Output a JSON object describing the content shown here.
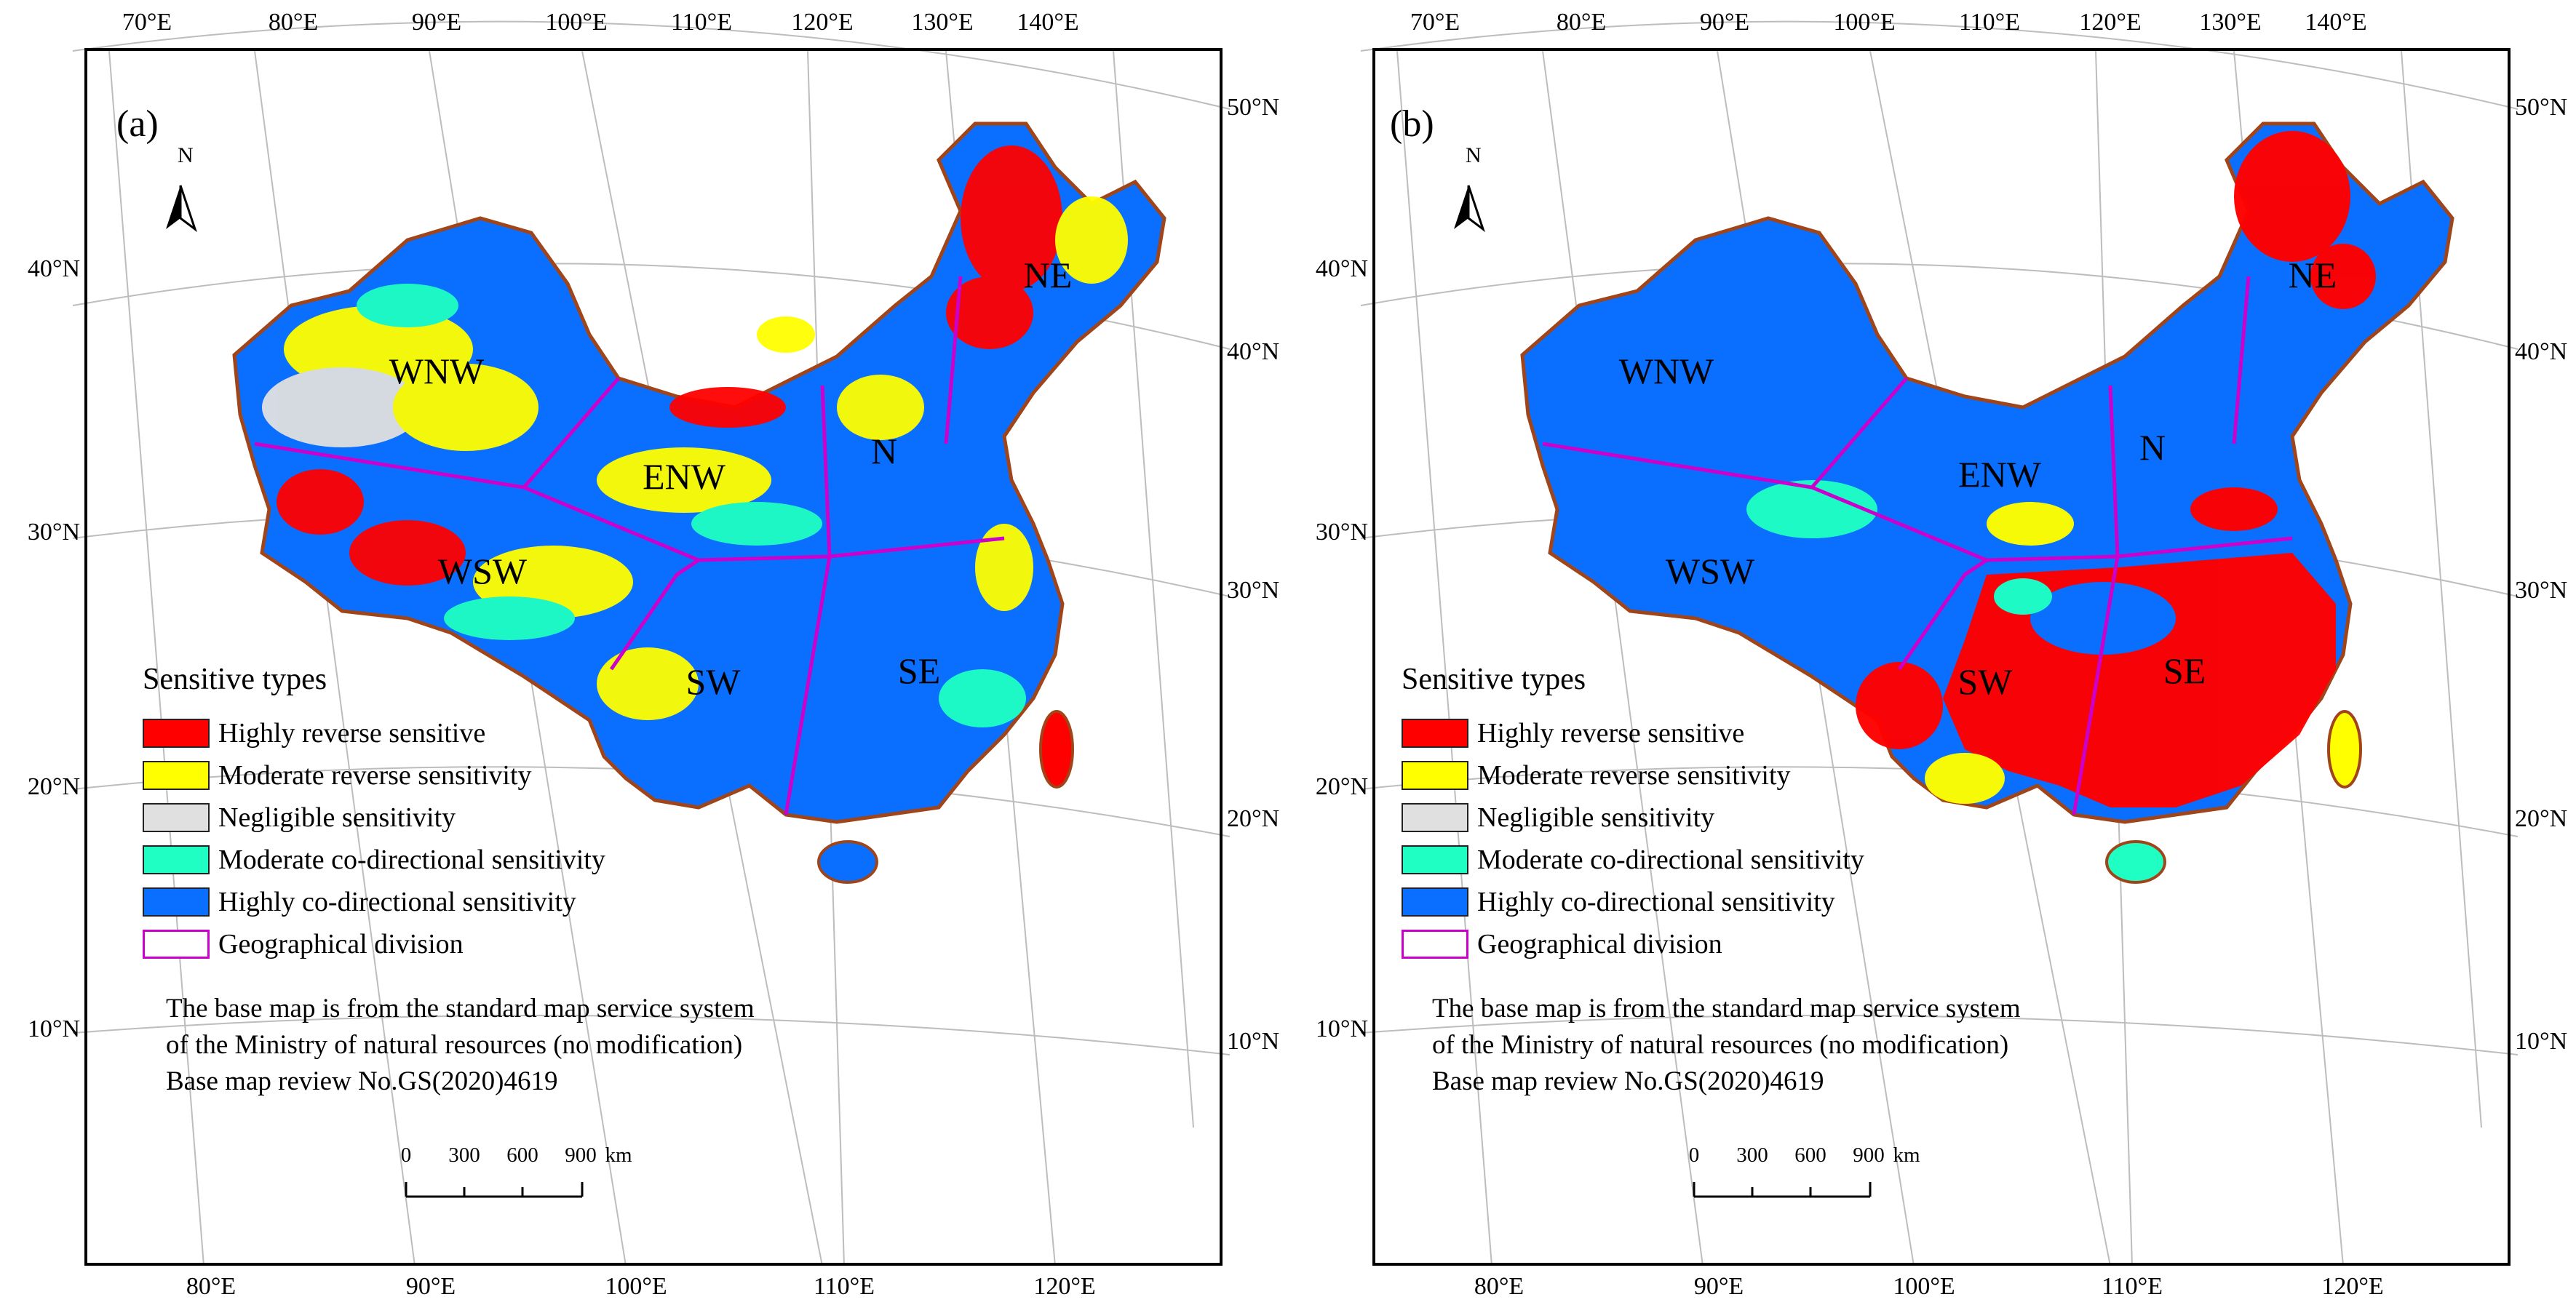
{
  "figure": {
    "panels": [
      {
        "label": "(a)",
        "regions": [
          "WNW",
          "ENW",
          "N",
          "NE",
          "WSW",
          "SW",
          "SE"
        ]
      },
      {
        "label": "(b)",
        "regions": [
          "WNW",
          "ENW",
          "N",
          "NE",
          "WSW",
          "SW",
          "SE"
        ]
      }
    ],
    "north_arrow": "N",
    "axes": {
      "top_longitudes": [
        "70°E",
        "80°E",
        "90°E",
        "100°E",
        "110°E",
        "120°E",
        "130°E",
        "140°E"
      ],
      "bottom_longitudes": [
        "80°E",
        "90°E",
        "100°E",
        "110°E",
        "120°E"
      ],
      "left_latitudes": [
        "40°N",
        "30°N",
        "20°N",
        "10°N"
      ],
      "right_latitudes": [
        "50°N",
        "40°N",
        "30°N",
        "20°N",
        "10°N"
      ]
    },
    "legend": {
      "title": "Sensitive types",
      "items": [
        {
          "label": "Highly reverse sensitive",
          "color": "#ff0000"
        },
        {
          "label": "Moderate reverse sensitivity",
          "color": "#ffff00"
        },
        {
          "label": "Negligible sensitivity",
          "color": "#e0e0e0"
        },
        {
          "label": "Moderate co-directional sensitivity",
          "color": "#1fffc4"
        },
        {
          "label": "Highly co-directional sensitivity",
          "color": "#0a6eff"
        },
        {
          "label": "Geographical division",
          "color": "#cc00cc"
        }
      ]
    },
    "note": [
      "The base map is from the standard map service system",
      "of the Ministry of natural resources (no modification)",
      "Base map review No.GS(2020)4619"
    ],
    "scale_bar": {
      "ticks": [
        "0",
        "300",
        "600",
        "900"
      ],
      "unit": "km"
    },
    "colors": {
      "highly_reverse": "#ff0000",
      "moderate_reverse": "#ffff00",
      "negligible": "#e0e0e0",
      "moderate_co": "#1fffc4",
      "highly_co": "#0a6eff",
      "division": "#cc00cc",
      "border": "#a0451a"
    }
  }
}
